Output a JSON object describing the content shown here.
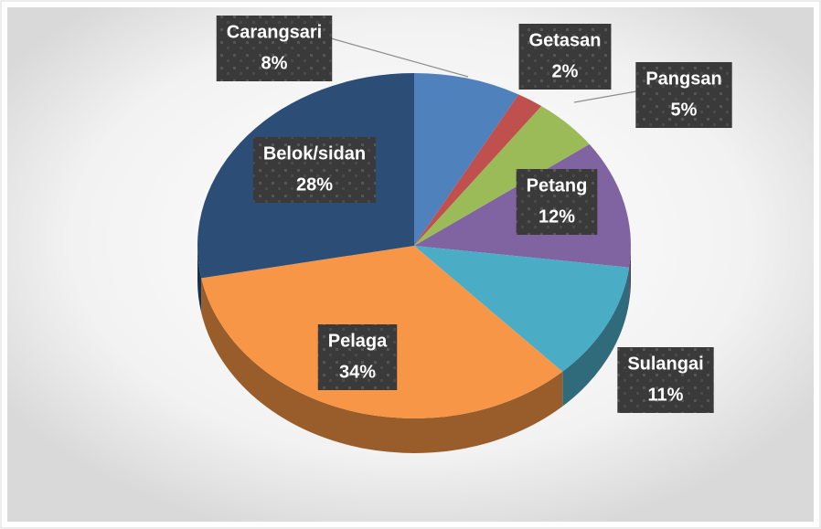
{
  "chart_data": {
    "type": "pie3d",
    "categories": [
      "Carangsari",
      "Getasan",
      "Pangsan",
      "Petang",
      "Sulangai",
      "Pelaga",
      "Belok/sidan"
    ],
    "values": [
      8,
      2,
      5,
      12,
      11,
      34,
      28
    ],
    "value_labels": [
      "8%",
      "2%",
      "5%",
      "12%",
      "11%",
      "34%",
      "28%"
    ],
    "colors": [
      "#4f81bd",
      "#c0504d",
      "#9bbb59",
      "#8064a2",
      "#4bacc6",
      "#f79646",
      "#2c4d75"
    ]
  }
}
